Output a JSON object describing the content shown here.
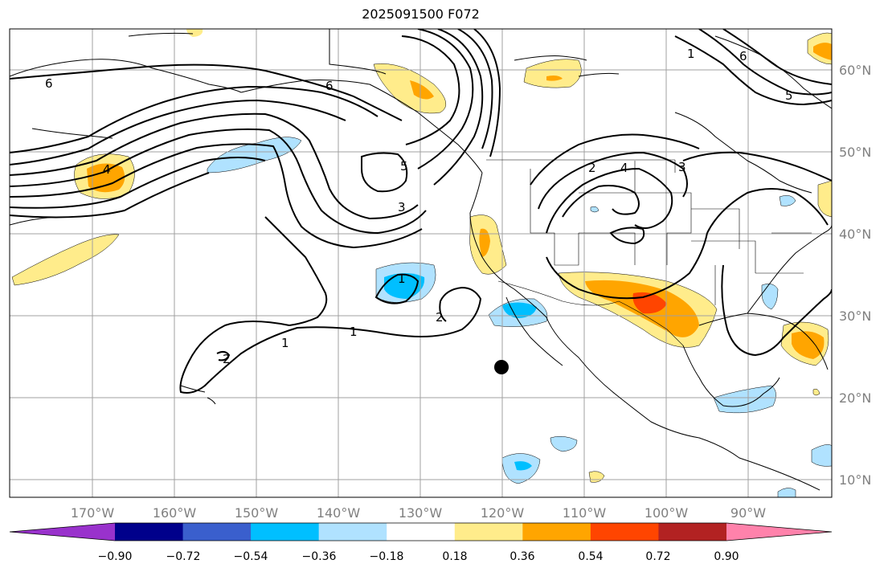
{
  "title": "2025091500 F072",
  "lon_ticks": [
    {
      "label": "170°W",
      "lon": -170
    },
    {
      "label": "160°W",
      "lon": -160
    },
    {
      "label": "150°W",
      "lon": -150
    },
    {
      "label": "140°W",
      "lon": -140
    },
    {
      "label": "130°W",
      "lon": -130
    },
    {
      "label": "120°W",
      "lon": -120
    },
    {
      "label": "110°W",
      "lon": -110
    },
    {
      "label": "100°W",
      "lon": -100
    },
    {
      "label": "90°W",
      "lon": -90
    }
  ],
  "lat_ticks": [
    {
      "label": "60°N",
      "lat": 60
    },
    {
      "label": "50°N",
      "lat": 50
    },
    {
      "label": "40°N",
      "lat": 40
    },
    {
      "label": "30°N",
      "lat": 30
    },
    {
      "label": "20°N",
      "lat": 20
    },
    {
      "label": "10°N",
      "lat": 10
    }
  ],
  "colorbar": {
    "colors": [
      "#9932cc",
      "#00008b",
      "#3a5fcd",
      "#00bfff",
      "#b0e2ff",
      "#ffffff",
      "#ffec8b",
      "#ffa500",
      "#ff4500",
      "#b22222",
      "#ff82ab"
    ],
    "labels": [
      "−0.90",
      "−0.72",
      "−0.54",
      "−0.36",
      "−0.18",
      "0.18",
      "0.36",
      "0.54",
      "0.72",
      "0.90"
    ]
  },
  "contour_labels": [
    "6",
    "6",
    "4",
    "5",
    "3",
    "1",
    "1",
    "2",
    "2",
    "1",
    "2",
    "3",
    "4",
    "1",
    "6",
    "5"
  ],
  "marker": {
    "name": "point",
    "lon": -120,
    "lat": 23.7
  }
}
